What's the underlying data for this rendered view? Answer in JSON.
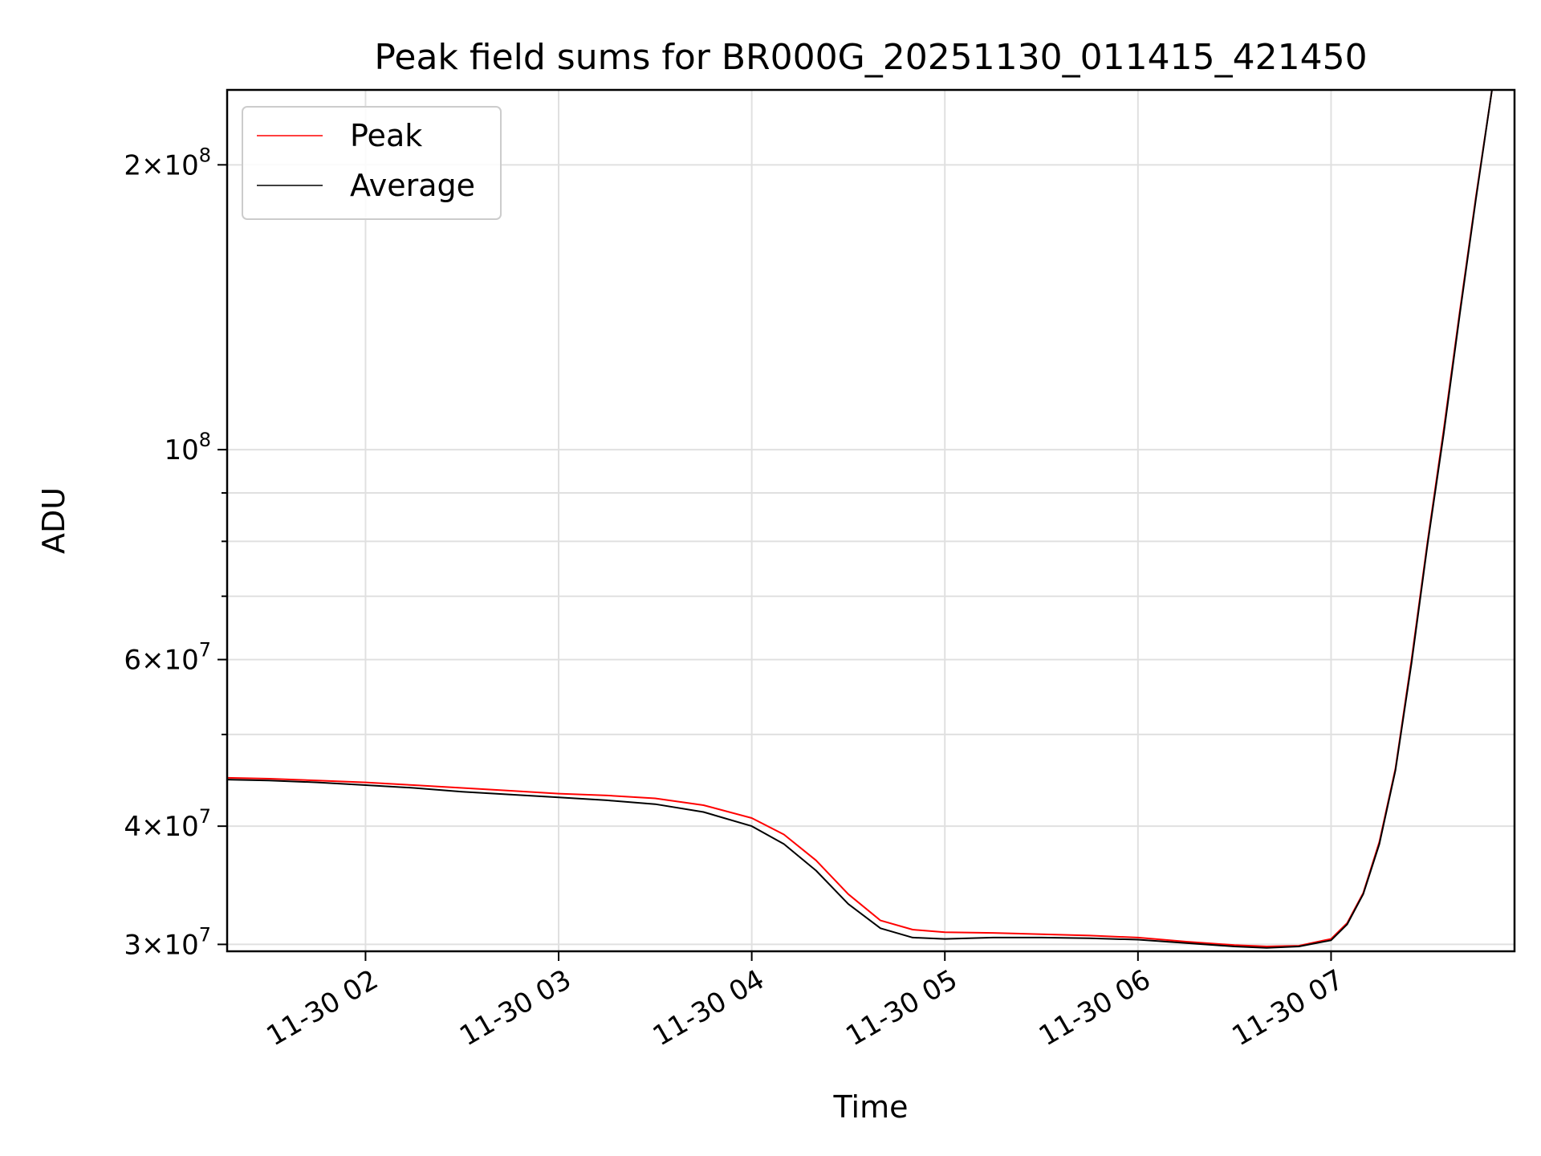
{
  "chart_data": {
    "type": "line",
    "title": "Peak field sums for BR000G_20251130_011415_421450",
    "xlabel": "Time",
    "ylabel": "ADU",
    "y_scale": "log",
    "ylim": [
      29500000,
      240000000
    ],
    "xlim": [
      "2025-11-30 01:17",
      "2025-11-30 07:57"
    ],
    "grid": true,
    "legend_position": "top-left",
    "x_ticks": [
      {
        "label": "11-30 02",
        "time": "2025-11-30 02:00"
      },
      {
        "label": "11-30 03",
        "time": "2025-11-30 03:00"
      },
      {
        "label": "11-30 04",
        "time": "2025-11-30 04:00"
      },
      {
        "label": "11-30 05",
        "time": "2025-11-30 05:00"
      },
      {
        "label": "11-30 06",
        "time": "2025-11-30 06:00"
      },
      {
        "label": "11-30 07",
        "time": "2025-11-30 07:00"
      }
    ],
    "y_ticks": [
      {
        "label_mantissa": "3",
        "label_exponent": "7",
        "value": 30000000
      },
      {
        "label_mantissa": "4",
        "label_exponent": "7",
        "value": 40000000
      },
      {
        "label_mantissa": "6",
        "label_exponent": "7",
        "value": 60000000
      },
      {
        "label_mantissa": "",
        "label_exponent": "8",
        "value": 100000000
      },
      {
        "label_mantissa": "2",
        "label_exponent": "8",
        "value": 200000000
      }
    ],
    "y_minor_ticks": [
      50000000,
      70000000,
      80000000,
      90000000
    ],
    "series": [
      {
        "name": "Peak",
        "color": "#ff0000",
        "x": [
          "2025-11-30 01:17",
          "2025-11-30 01:30",
          "2025-11-30 01:45",
          "2025-11-30 02:00",
          "2025-11-30 02:15",
          "2025-11-30 02:30",
          "2025-11-30 02:45",
          "2025-11-30 03:00",
          "2025-11-30 03:15",
          "2025-11-30 03:30",
          "2025-11-30 03:45",
          "2025-11-30 04:00",
          "2025-11-30 04:10",
          "2025-11-30 04:20",
          "2025-11-30 04:30",
          "2025-11-30 04:40",
          "2025-11-30 04:50",
          "2025-11-30 05:00",
          "2025-11-30 05:15",
          "2025-11-30 05:30",
          "2025-11-30 05:45",
          "2025-11-30 06:00",
          "2025-11-30 06:15",
          "2025-11-30 06:30",
          "2025-11-30 06:40",
          "2025-11-30 06:50",
          "2025-11-30 07:00",
          "2025-11-30 07:05",
          "2025-11-30 07:10",
          "2025-11-30 07:15",
          "2025-11-30 07:20",
          "2025-11-30 07:25",
          "2025-11-30 07:30",
          "2025-11-30 07:35",
          "2025-11-30 07:40",
          "2025-11-30 07:45",
          "2025-11-30 07:50"
        ],
        "values": [
          45000000,
          44900000,
          44700000,
          44500000,
          44200000,
          43900000,
          43600000,
          43300000,
          43100000,
          42800000,
          42100000,
          40800000,
          39200000,
          36800000,
          33900000,
          31800000,
          31100000,
          30900000,
          30850000,
          30750000,
          30650000,
          30500000,
          30200000,
          29950000,
          29850000,
          29900000,
          30400000,
          31600000,
          34000000,
          38500000,
          46000000,
          60000000,
          80000000,
          105000000,
          140000000,
          185000000,
          240000000
        ]
      },
      {
        "name": "Average",
        "color": "#000000",
        "x": [
          "2025-11-30 01:17",
          "2025-11-30 01:30",
          "2025-11-30 01:45",
          "2025-11-30 02:00",
          "2025-11-30 02:15",
          "2025-11-30 02:30",
          "2025-11-30 02:45",
          "2025-11-30 03:00",
          "2025-11-30 03:15",
          "2025-11-30 03:30",
          "2025-11-30 03:45",
          "2025-11-30 04:00",
          "2025-11-30 04:10",
          "2025-11-30 04:20",
          "2025-11-30 04:30",
          "2025-11-30 04:40",
          "2025-11-30 04:50",
          "2025-11-30 05:00",
          "2025-11-30 05:15",
          "2025-11-30 05:30",
          "2025-11-30 05:45",
          "2025-11-30 06:00",
          "2025-11-30 06:15",
          "2025-11-30 06:30",
          "2025-11-30 06:40",
          "2025-11-30 06:50",
          "2025-11-30 07:00",
          "2025-11-30 07:05",
          "2025-11-30 07:10",
          "2025-11-30 07:15",
          "2025-11-30 07:20",
          "2025-11-30 07:25",
          "2025-11-30 07:30",
          "2025-11-30 07:35",
          "2025-11-30 07:40",
          "2025-11-30 07:45",
          "2025-11-30 07:50"
        ],
        "values": [
          44800000,
          44700000,
          44500000,
          44200000,
          43900000,
          43500000,
          43200000,
          42900000,
          42600000,
          42200000,
          41400000,
          40000000,
          38300000,
          35900000,
          33100000,
          31200000,
          30500000,
          30400000,
          30500000,
          30500000,
          30450000,
          30350000,
          30100000,
          29850000,
          29750000,
          29850000,
          30300000,
          31500000,
          33900000,
          38300000,
          45800000,
          59500000,
          79500000,
          104000000,
          139000000,
          184000000,
          240000000
        ]
      }
    ]
  }
}
